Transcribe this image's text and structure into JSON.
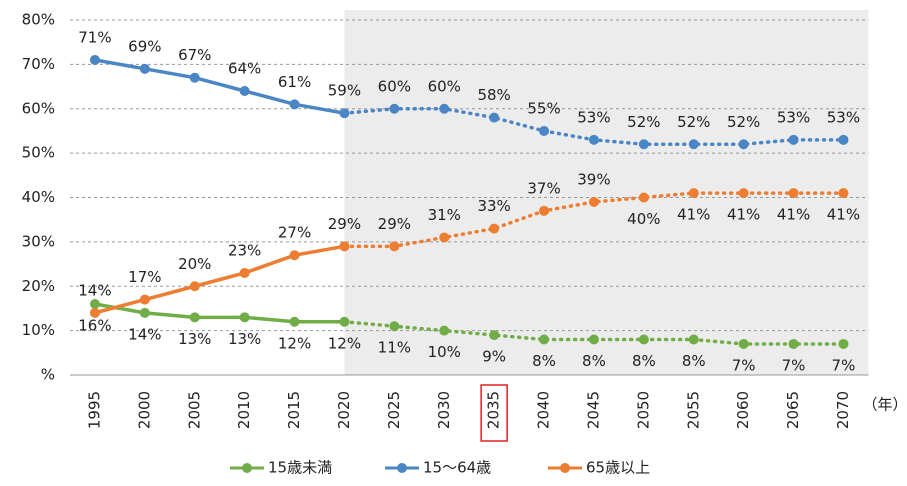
{
  "chart_data": {
    "type": "line",
    "categories": [
      "1995",
      "2000",
      "2005",
      "2010",
      "2015",
      "2020",
      "2025",
      "2030",
      "2035",
      "2040",
      "2045",
      "2050",
      "2055",
      "2060",
      "2065",
      "2070"
    ],
    "x_label": "（年）",
    "series": [
      {
        "name": "15歳未満",
        "color": "#70ad47",
        "values": [
          16,
          14,
          13,
          13,
          12,
          12,
          11,
          10,
          9,
          8,
          8,
          8,
          8,
          7,
          7,
          7
        ],
        "value_labels": [
          "16%",
          "14%",
          "13%",
          "13%",
          "12%",
          "12%",
          "11%",
          "10%",
          "9%",
          "8%",
          "8%",
          "8%",
          "8%",
          "7%",
          "7%",
          "7%"
        ]
      },
      {
        "name": "15～64歳",
        "color": "#4a86c5",
        "values": [
          71,
          69,
          67,
          64,
          61,
          59,
          60,
          60,
          58,
          55,
          53,
          52,
          52,
          52,
          53,
          53
        ],
        "value_labels": [
          "71%",
          "69%",
          "67%",
          "64%",
          "61%",
          "59%",
          "60%",
          "60%",
          "58%",
          "55%",
          "53%",
          "52%",
          "52%",
          "52%",
          "53%",
          "53%"
        ]
      },
      {
        "name": "65歳以上",
        "color": "#ed7d31",
        "values": [
          14,
          17,
          20,
          23,
          27,
          29,
          29,
          31,
          33,
          37,
          39,
          40,
          41,
          41,
          41,
          41
        ],
        "value_labels": [
          "14%",
          "17%",
          "20%",
          "23%",
          "27%",
          "29%",
          "29%",
          "31%",
          "33%",
          "37%",
          "39%",
          "40%",
          "41%",
          "41%",
          "41%",
          "41%"
        ]
      }
    ],
    "ylim": [
      0,
      80
    ],
    "yticks": [
      {
        "value": 0,
        "label": "%"
      },
      {
        "value": 10,
        "label": "10%"
      },
      {
        "value": 20,
        "label": "20%"
      },
      {
        "value": 30,
        "label": "30%"
      },
      {
        "value": 40,
        "label": "40%"
      },
      {
        "value": 50,
        "label": "50%"
      },
      {
        "value": 60,
        "label": "60%"
      },
      {
        "value": 70,
        "label": "70%"
      },
      {
        "value": 80,
        "label": "80%"
      }
    ],
    "grid": true,
    "projection_start_index": 5,
    "highlight_category_index": 8,
    "legend": "bottom"
  }
}
